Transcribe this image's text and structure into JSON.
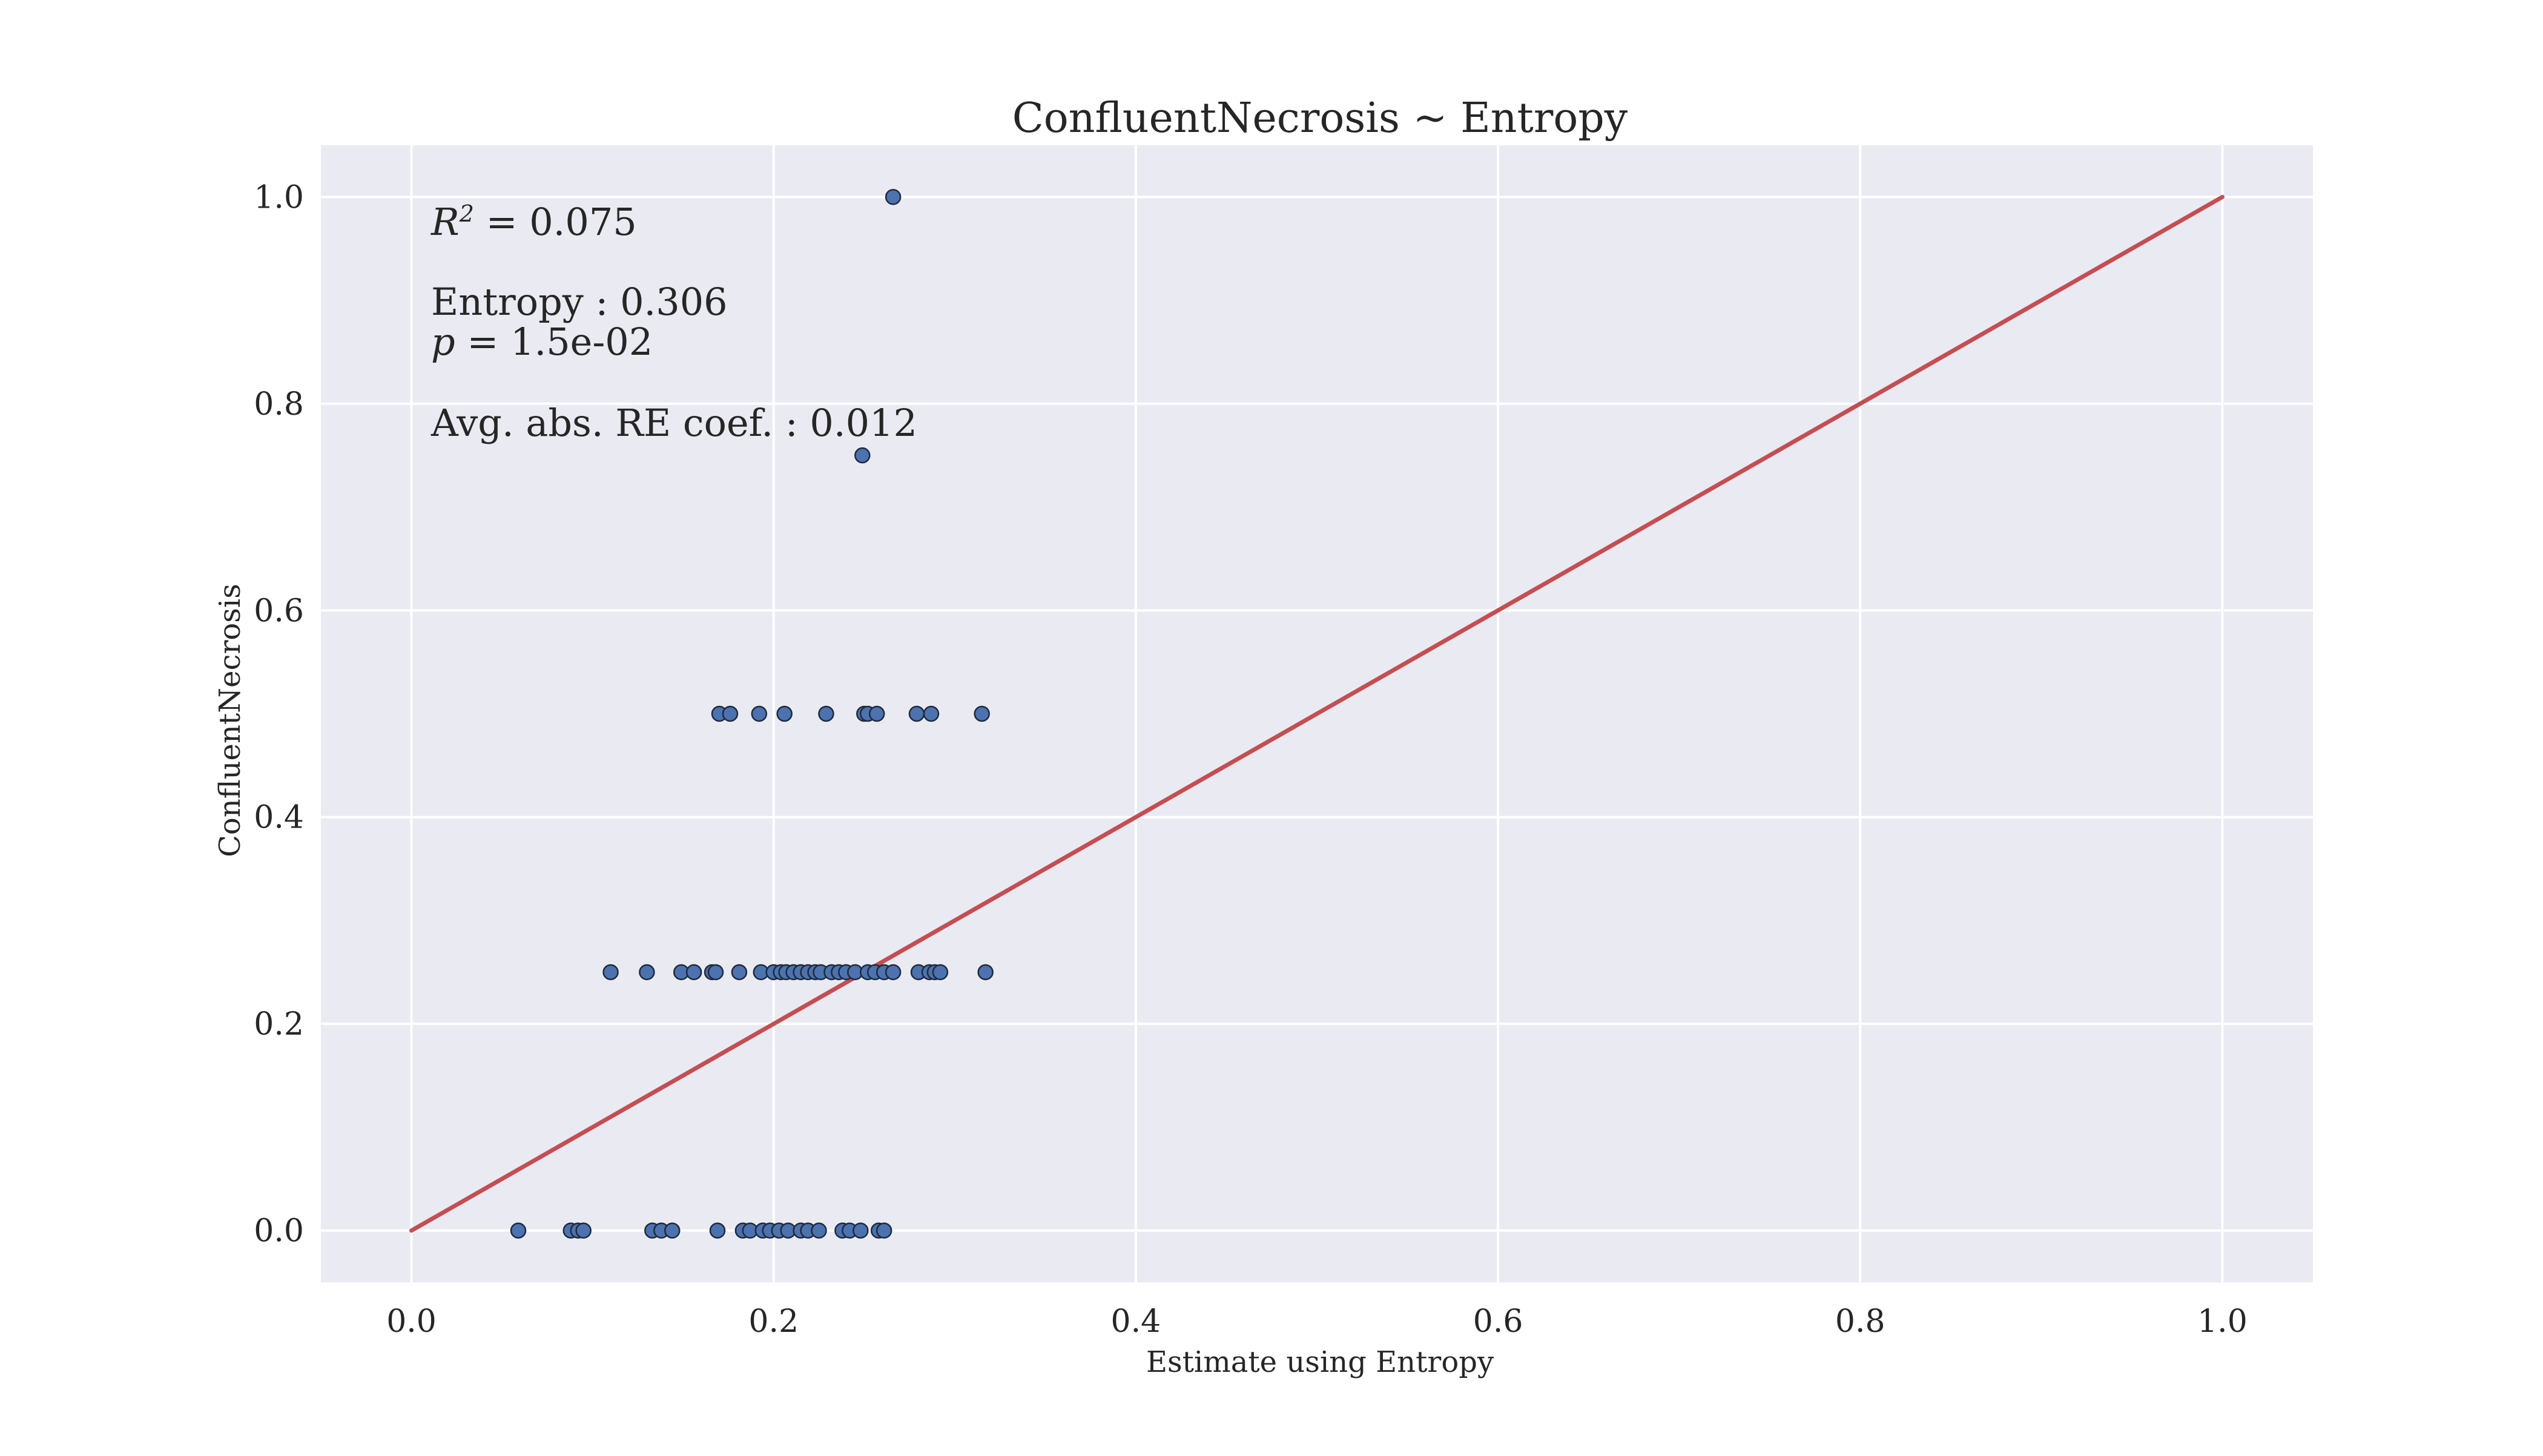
{
  "chart_data": {
    "type": "scatter",
    "title": "ConfluentNecrosis ~ Entropy",
    "xlabel": "Estimate using Entropy",
    "ylabel": "ConfluentNecrosis",
    "xlim": [
      -0.05,
      1.05
    ],
    "ylim": [
      -0.05,
      1.05
    ],
    "xticks": [
      0.0,
      0.2,
      0.4,
      0.6,
      0.8,
      1.0
    ],
    "yticks": [
      0.0,
      0.2,
      0.4,
      0.6,
      0.8,
      1.0
    ],
    "xtick_labels": [
      "0.0",
      "0.2",
      "0.4",
      "0.6",
      "0.8",
      "1.0"
    ],
    "ytick_labels": [
      "0.0",
      "0.2",
      "0.4",
      "0.6",
      "0.8",
      "1.0"
    ],
    "grid": true,
    "background": "#eaeaf2",
    "point_color": "#4c72b0",
    "line_color": "#c44e52",
    "reference_line": {
      "x": [
        0.0,
        1.0
      ],
      "y": [
        0.0,
        1.0
      ]
    },
    "annotations": {
      "r2_symbol": "R",
      "r2_sup": "2",
      "r2_value": " = 0.075",
      "coef": "Entropy : 0.306",
      "p_symbol": "p",
      "p_value": " = 1.5e-02",
      "re_coef": "Avg. abs. RE coef. : 0.012"
    },
    "points": [
      {
        "x": 0.266,
        "y": 1.0
      },
      {
        "x": 0.249,
        "y": 0.75
      },
      {
        "x": 0.17,
        "y": 0.5
      },
      {
        "x": 0.176,
        "y": 0.5
      },
      {
        "x": 0.192,
        "y": 0.5
      },
      {
        "x": 0.206,
        "y": 0.5
      },
      {
        "x": 0.229,
        "y": 0.5
      },
      {
        "x": 0.25,
        "y": 0.5
      },
      {
        "x": 0.252,
        "y": 0.5
      },
      {
        "x": 0.257,
        "y": 0.5
      },
      {
        "x": 0.279,
        "y": 0.5
      },
      {
        "x": 0.287,
        "y": 0.5
      },
      {
        "x": 0.315,
        "y": 0.5
      },
      {
        "x": 0.11,
        "y": 0.25
      },
      {
        "x": 0.13,
        "y": 0.25
      },
      {
        "x": 0.149,
        "y": 0.25
      },
      {
        "x": 0.156,
        "y": 0.25
      },
      {
        "x": 0.166,
        "y": 0.25
      },
      {
        "x": 0.168,
        "y": 0.25
      },
      {
        "x": 0.181,
        "y": 0.25
      },
      {
        "x": 0.193,
        "y": 0.25
      },
      {
        "x": 0.2,
        "y": 0.25
      },
      {
        "x": 0.204,
        "y": 0.25
      },
      {
        "x": 0.207,
        "y": 0.25
      },
      {
        "x": 0.211,
        "y": 0.25
      },
      {
        "x": 0.215,
        "y": 0.25
      },
      {
        "x": 0.219,
        "y": 0.25
      },
      {
        "x": 0.223,
        "y": 0.25
      },
      {
        "x": 0.226,
        "y": 0.25
      },
      {
        "x": 0.232,
        "y": 0.25
      },
      {
        "x": 0.236,
        "y": 0.25
      },
      {
        "x": 0.24,
        "y": 0.25
      },
      {
        "x": 0.245,
        "y": 0.25
      },
      {
        "x": 0.252,
        "y": 0.25
      },
      {
        "x": 0.256,
        "y": 0.25
      },
      {
        "x": 0.261,
        "y": 0.25
      },
      {
        "x": 0.266,
        "y": 0.25
      },
      {
        "x": 0.28,
        "y": 0.25
      },
      {
        "x": 0.286,
        "y": 0.25
      },
      {
        "x": 0.289,
        "y": 0.25
      },
      {
        "x": 0.292,
        "y": 0.25
      },
      {
        "x": 0.317,
        "y": 0.25
      },
      {
        "x": 0.059,
        "y": 0.0
      },
      {
        "x": 0.088,
        "y": 0.0
      },
      {
        "x": 0.092,
        "y": 0.0
      },
      {
        "x": 0.095,
        "y": 0.0
      },
      {
        "x": 0.133,
        "y": 0.0
      },
      {
        "x": 0.138,
        "y": 0.0
      },
      {
        "x": 0.144,
        "y": 0.0
      },
      {
        "x": 0.169,
        "y": 0.0
      },
      {
        "x": 0.183,
        "y": 0.0
      },
      {
        "x": 0.187,
        "y": 0.0
      },
      {
        "x": 0.194,
        "y": 0.0
      },
      {
        "x": 0.198,
        "y": 0.0
      },
      {
        "x": 0.203,
        "y": 0.0
      },
      {
        "x": 0.208,
        "y": 0.0
      },
      {
        "x": 0.215,
        "y": 0.0
      },
      {
        "x": 0.219,
        "y": 0.0
      },
      {
        "x": 0.225,
        "y": 0.0
      },
      {
        "x": 0.238,
        "y": 0.0
      },
      {
        "x": 0.242,
        "y": 0.0
      },
      {
        "x": 0.248,
        "y": 0.0
      },
      {
        "x": 0.258,
        "y": 0.0
      },
      {
        "x": 0.261,
        "y": 0.0
      }
    ]
  }
}
